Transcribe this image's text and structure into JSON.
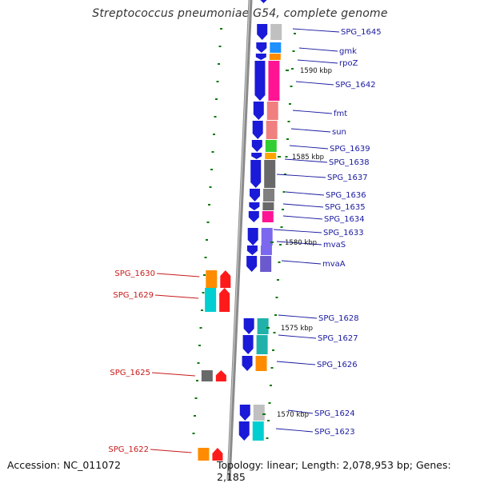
{
  "title": "Streptococcus pneumoniae G54, complete genome",
  "accession_label": "Accession: NC_011072",
  "summary_label": "Topology: linear; Length: 2,078,953 bp; Genes: 2,185",
  "colors": {
    "backbone": "#8a8a8a",
    "reverse_strand_gene": "#1a1ad8",
    "forward_strand_gene": "#ff1a1a",
    "reverse_label": "#1a1aa0",
    "forward_label": "#c81a1a",
    "tick": "#0a7a0a"
  },
  "scale_marks": [
    {
      "label": "1590 kbp",
      "kbp": 1590
    },
    {
      "label": "1585 kbp",
      "kbp": 1585
    },
    {
      "label": "1580 kbp",
      "kbp": 1580
    },
    {
      "label": "1575 kbp",
      "kbp": 1575
    },
    {
      "label": "1570 kbp",
      "kbp": 1570
    }
  ],
  "reverse_genes": [
    {
      "name": "SPG_1645",
      "category_color": "#c0c0c0"
    },
    {
      "name": "gmk",
      "category_color": "#1e90ff"
    },
    {
      "name": "rpoZ",
      "category_color": "#ff8c00"
    },
    {
      "name": "SPG_1642",
      "category_color": "#ff1493"
    },
    {
      "name": "fmt",
      "category_color": "#f08080"
    },
    {
      "name": "sun",
      "category_color": "#f08080"
    },
    {
      "name": "SPG_1639",
      "category_color": "#32cd32"
    },
    {
      "name": "SPG_1638",
      "category_color": "#ffa500"
    },
    {
      "name": "SPG_1637",
      "category_color": "#696969"
    },
    {
      "name": "SPG_1636",
      "category_color": "#808080"
    },
    {
      "name": "SPG_1635",
      "category_color": "#696969"
    },
    {
      "name": "SPG_1634",
      "category_color": "#ff1493"
    },
    {
      "name": "SPG_1633",
      "category_color": "#7b68ee"
    },
    {
      "name": "mvaS",
      "category_color": "#7b68ee"
    },
    {
      "name": "mvaA",
      "category_color": "#6a5acd"
    },
    {
      "name": "SPG_1628",
      "category_color": "#20b2aa"
    },
    {
      "name": "SPG_1627",
      "category_color": "#20b2aa"
    },
    {
      "name": "SPG_1626",
      "category_color": "#ff8c00"
    },
    {
      "name": "SPG_1624",
      "category_color": "#c0c0c0"
    },
    {
      "name": "SPG_1623",
      "category_color": "#00ced1"
    }
  ],
  "forward_genes": [
    {
      "name": "SPG_1630",
      "category_color": "#ff8c00"
    },
    {
      "name": "SPG_1629",
      "category_color": "#00ced1"
    },
    {
      "name": "SPG_1625",
      "category_color": "#696969"
    },
    {
      "name": "SPG_1622",
      "category_color": "#ff8c00"
    }
  ]
}
